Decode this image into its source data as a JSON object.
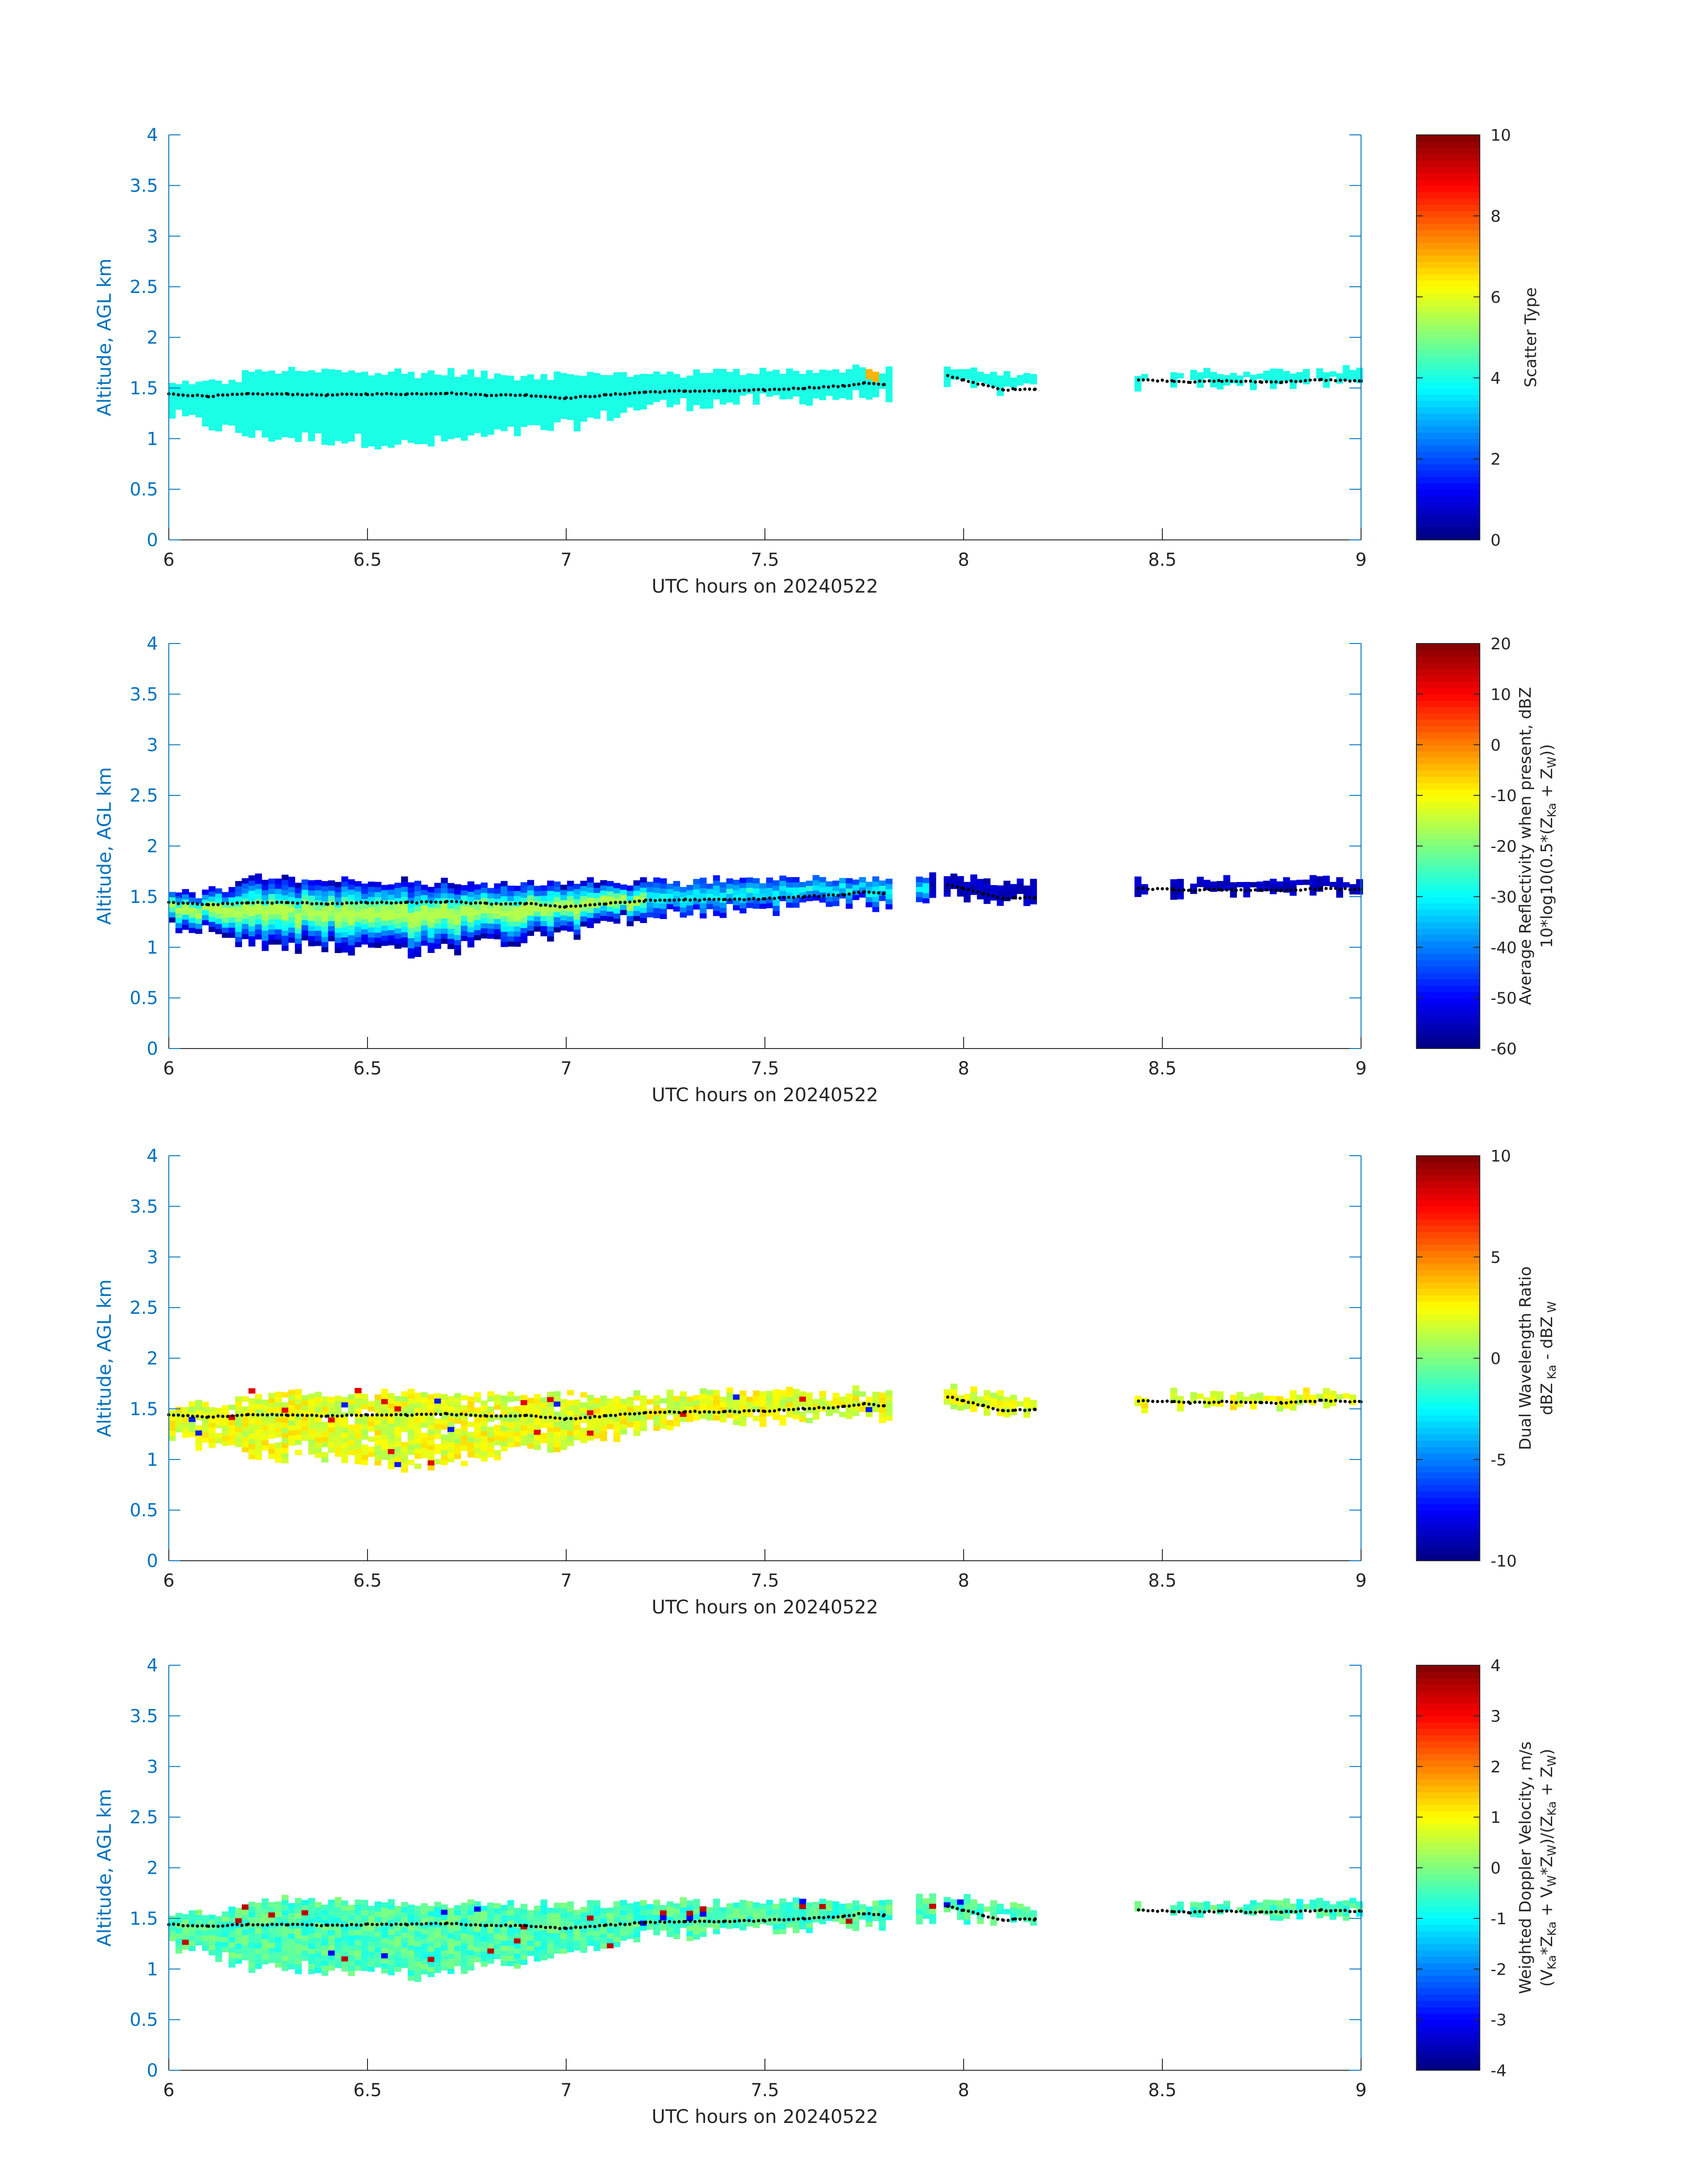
{
  "chart_data": [
    {
      "type": "heatmap",
      "xlabel": "UTC hours on 20240522",
      "ylabel": "Altitude, AGL km",
      "xlim": [
        6,
        9
      ],
      "ylim": [
        0,
        4
      ],
      "xticks": [
        "6",
        "6.5",
        "7",
        "7.5",
        "8",
        "8.5",
        "9"
      ],
      "yticks": [
        "0",
        "0.5",
        "1",
        "1.5",
        "2",
        "2.5",
        "3",
        "3.5",
        "4"
      ],
      "colorbar": {
        "label_lines": [
          "Scatter Type"
        ],
        "range": [
          0,
          10
        ],
        "ticks": [
          "0",
          "2",
          "4",
          "6",
          "8",
          "10"
        ],
        "colormap": "jet"
      },
      "field": "scatter",
      "value_note": "dominant value 4 (cyan); isolated value 7 near 7.77 h, 1.6 km"
    },
    {
      "type": "heatmap",
      "xlabel": "UTC hours on 20240522",
      "ylabel": "Altitude, AGL km",
      "xlim": [
        6,
        9
      ],
      "ylim": [
        0,
        4
      ],
      "xticks": [
        "6",
        "6.5",
        "7",
        "7.5",
        "8",
        "8.5",
        "9"
      ],
      "yticks": [
        "0",
        "0.5",
        "1",
        "1.5",
        "2",
        "2.5",
        "3",
        "3.5",
        "4"
      ],
      "colorbar": {
        "label_lines": [
          "Average Reflectivity when present, dBZ",
          "10*log10(0.5*(Z_Ka + Z_W))"
        ],
        "range": [
          -60,
          20
        ],
        "ticks": [
          "-60",
          "-50",
          "-40",
          "-30",
          "-20",
          "-10",
          "0",
          "10",
          "20"
        ],
        "colormap": "jet"
      },
      "field": "reflectivity",
      "value_note": "core values about -20 dBZ near 1.35 km, edges about -55 dBZ"
    },
    {
      "type": "heatmap",
      "xlabel": "UTC hours on 20240522",
      "ylabel": "Altitude, AGL km",
      "xlim": [
        6,
        9
      ],
      "ylim": [
        0,
        4
      ],
      "xticks": [
        "6",
        "6.5",
        "7",
        "7.5",
        "8",
        "8.5",
        "9"
      ],
      "yticks": [
        "0",
        "0.5",
        "1",
        "1.5",
        "2",
        "2.5",
        "3",
        "3.5",
        "4"
      ],
      "colorbar": {
        "label_lines": [
          "Dual Wavelength Ratio",
          "dBZ_Ka - dBZ_W"
        ],
        "range": [
          -10,
          10
        ],
        "ticks": [
          "-10",
          "-5",
          "0",
          "5",
          "10"
        ],
        "colormap": "jet"
      },
      "field": "dwr",
      "value_note": "typical values 1 to 3 dB"
    },
    {
      "type": "heatmap",
      "xlabel": "UTC hours on 20240522",
      "ylabel": "Altitude, AGL km",
      "xlim": [
        6,
        9
      ],
      "ylim": [
        0,
        4
      ],
      "xticks": [
        "6",
        "6.5",
        "7",
        "7.5",
        "8",
        "8.5",
        "9"
      ],
      "yticks": [
        "0",
        "0.5",
        "1",
        "1.5",
        "2",
        "2.5",
        "3",
        "3.5",
        "4"
      ],
      "colorbar": {
        "label_lines": [
          "Weighted Doppler Velocity, m/s",
          "(V_Ka*Z_Ka + V_W*Z_W)/(Z_Ka + Z_W)"
        ],
        "range": [
          -4,
          4
        ],
        "ticks": [
          "-4",
          "-3",
          "-2",
          "-1",
          "0",
          "1",
          "2",
          "3",
          "4"
        ],
        "colormap": "jet"
      },
      "field": "velocity",
      "value_note": "typical values -0.5 to 0 m/s"
    }
  ],
  "cloud": {
    "x_step_hours": 0.0167,
    "z_step_km": 0.05,
    "segments": [
      {
        "x0": 6.0,
        "x1": 7.82
      },
      {
        "x0": 7.88,
        "x1": 7.92,
        "panels": [
          1,
          3
        ]
      },
      {
        "x0": 7.95,
        "x1": 8.18
      },
      {
        "x0": 8.43,
        "x1": 8.45
      },
      {
        "x0": 8.52,
        "x1": 8.54
      },
      {
        "x0": 8.57,
        "x1": 9.0
      }
    ],
    "top_km_at": {
      "x": [
        6.0,
        6.15,
        6.2,
        7.0,
        7.5,
        7.8,
        7.95,
        8.1,
        8.18,
        8.57,
        9.0
      ],
      "y": [
        1.5,
        1.55,
        1.65,
        1.6,
        1.65,
        1.65,
        1.7,
        1.6,
        1.6,
        1.63,
        1.65
      ]
    },
    "base_km_at": {
      "x": [
        6.0,
        6.2,
        6.5,
        6.6,
        6.8,
        7.0,
        7.2,
        7.5,
        7.8,
        7.95,
        8.1,
        8.18,
        8.57,
        9.0
      ],
      "y": [
        1.2,
        1.0,
        0.95,
        0.9,
        1.0,
        1.1,
        1.3,
        1.35,
        1.4,
        1.5,
        1.45,
        1.45,
        1.52,
        1.52
      ]
    }
  },
  "cloud_top_markers": {
    "x": [
      6.0,
      6.1,
      6.2,
      6.3,
      6.4,
      6.5,
      6.6,
      6.7,
      6.8,
      6.9,
      7.0,
      7.1,
      7.2,
      7.3,
      7.4,
      7.5,
      7.6,
      7.7,
      7.75,
      7.8,
      7.96,
      8.0,
      8.05,
      8.1,
      8.13,
      8.18,
      8.44,
      8.53,
      8.57,
      8.65,
      8.75,
      8.8,
      8.9,
      9.0
    ],
    "y": [
      1.44,
      1.42,
      1.44,
      1.44,
      1.43,
      1.44,
      1.44,
      1.45,
      1.43,
      1.43,
      1.4,
      1.43,
      1.46,
      1.47,
      1.47,
      1.48,
      1.5,
      1.52,
      1.55,
      1.53,
      1.62,
      1.58,
      1.53,
      1.48,
      1.49,
      1.49,
      1.58,
      1.57,
      1.56,
      1.57,
      1.56,
      1.56,
      1.58,
      1.57
    ]
  }
}
